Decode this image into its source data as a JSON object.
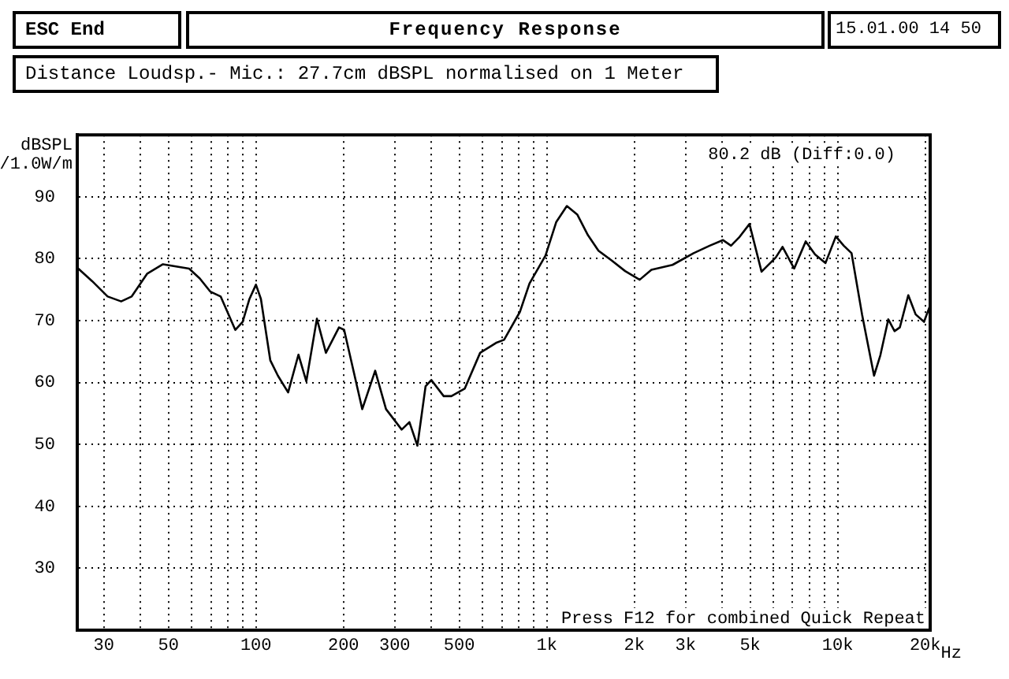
{
  "chart_data": {
    "type": "line",
    "title": "Frequency Response",
    "ylabel": "dBSPL /1.0W/m",
    "annotations": [
      "ESC End",
      "15.01.00 14 50",
      "Distance Loudsp.- Mic.: 27.7cm dBSPL normalised on 1 Meter",
      "80.2 dB (Diff:0.0)",
      "Press F12 for combined Quick Repeat"
    ],
    "x": [
      24.5,
      27.3,
      30.9,
      34.4,
      37.4,
      42.3,
      47.9,
      52.1,
      58.9,
      64.1,
      69.6,
      75.6,
      84.9,
      90,
      95,
      100,
      104,
      112,
      119,
      129,
      140,
      149,
      162,
      174,
      193,
      201,
      232,
      257,
      280,
      317,
      337,
      359,
      383,
      401,
      442,
      470,
      522,
      590,
      669,
      713,
      808,
      872,
      990,
      1077,
      1172,
      1274,
      1385,
      1505,
      1672,
      1859,
      2086,
      2289,
      2706,
      3198,
      3632,
      4036,
      4299,
      4577,
      4975,
      5474,
      6126,
      6463,
      7086,
      7765,
      8361,
      9083,
      9858,
      10492,
      11160,
      12130,
      13340,
      14020,
      14930,
      15690,
      16360,
      17490,
      18540,
      19810,
      20700
    ],
    "series": [
      {
        "color": "#000000",
        "values": [
          78.4,
          76.4,
          73.9,
          73.1,
          73.9,
          77.6,
          79.1,
          78.8,
          78.4,
          76.8,
          74.7,
          73.9,
          68.5,
          69.8,
          73.5,
          75.8,
          73.5,
          63.6,
          61.1,
          58.4,
          64.5,
          60.2,
          70.3,
          64.8,
          68.9,
          68.5,
          55.7,
          61.9,
          55.7,
          52.4,
          53.6,
          49.8,
          59.4,
          60.4,
          57.8,
          57.8,
          59,
          64.8,
          66.4,
          66.9,
          71.4,
          76,
          80.5,
          85.9,
          88.5,
          87.1,
          83.8,
          81.3,
          79.7,
          78,
          76.6,
          78.2,
          79,
          80.9,
          82.1,
          83,
          82.1,
          83.4,
          85.6,
          77.9,
          80.2,
          81.9,
          78.4,
          82.8,
          80.7,
          79.3,
          83.6,
          82.1,
          80.9,
          71,
          61.1,
          64.4,
          70.2,
          68.3,
          68.9,
          74.1,
          71,
          69.8,
          72.2
        ]
      }
    ],
    "log": "x",
    "xlim": [
      24.3,
      20800
    ],
    "xticks": [
      {
        "value": 30,
        "label": "30"
      },
      {
        "value": 40,
        "label": null
      },
      {
        "value": 50,
        "label": "50"
      },
      {
        "value": 60,
        "label": null
      },
      {
        "value": 70,
        "label": null
      },
      {
        "value": 80,
        "label": null
      },
      {
        "value": 90,
        "label": null
      },
      {
        "value": 100,
        "label": "100"
      },
      {
        "value": 200,
        "label": "200"
      },
      {
        "value": 300,
        "label": "300"
      },
      {
        "value": 400,
        "label": null
      },
      {
        "value": 500,
        "label": "500"
      },
      {
        "value": 600,
        "label": null
      },
      {
        "value": 700,
        "label": null
      },
      {
        "value": 800,
        "label": null
      },
      {
        "value": 900,
        "label": null
      },
      {
        "value": 1000,
        "label": "1k"
      },
      {
        "value": 2000,
        "label": "2k"
      },
      {
        "value": 3000,
        "label": "3k"
      },
      {
        "value": 4000,
        "label": null
      },
      {
        "value": 5000,
        "label": "5k"
      },
      {
        "value": 6000,
        "label": null
      },
      {
        "value": 7000,
        "label": null
      },
      {
        "value": 8000,
        "label": null
      },
      {
        "value": 9000,
        "label": null
      },
      {
        "value": 10000,
        "label": "10k"
      },
      {
        "value": 20000,
        "label": "20k"
      }
    ],
    "xlabel": "Hz",
    "ylim": [
      20,
      100
    ],
    "yticks": [
      30,
      40,
      50,
      60,
      70,
      80,
      90
    ],
    "grid": true,
    "legend": false,
    "marker": "none",
    "line_style": "solid"
  }
}
